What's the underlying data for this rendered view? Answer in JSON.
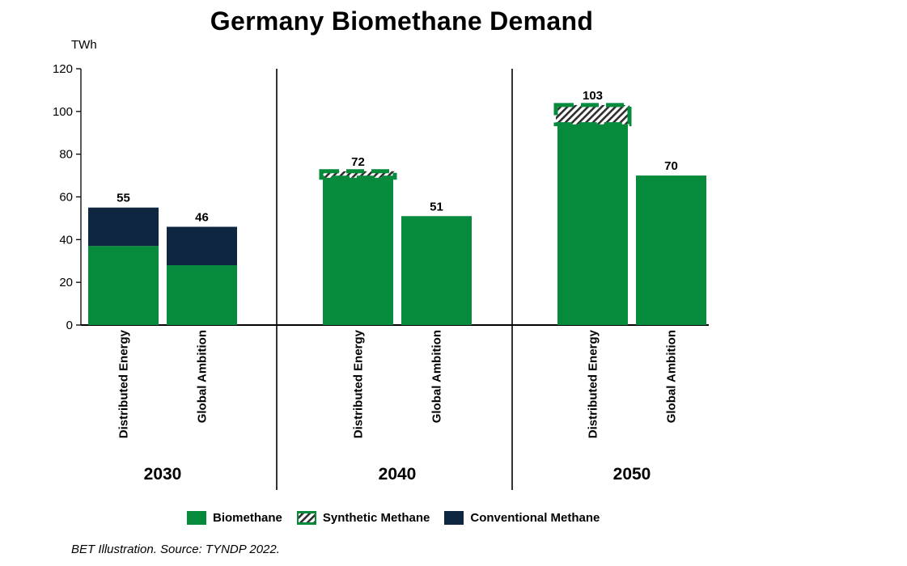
{
  "title": "Germany Biomethane Demand",
  "colors": {
    "biomethane": "#068a3c",
    "synthetic_hatch": "#2e2e2e",
    "conventional": "#0e2640",
    "axis": "#000000"
  },
  "legend": [
    {
      "key": "biomethane",
      "label": "Biomethane",
      "style": "solid"
    },
    {
      "key": "synthetic",
      "label": "Synthetic Methane",
      "style": "hatched"
    },
    {
      "key": "conventional",
      "label": "Conventional Methane",
      "style": "solid"
    }
  ],
  "source": "BET Illustration. Source: TYNDP 2022.",
  "chart_data": {
    "type": "bar",
    "stacked": true,
    "title": "Germany Biomethane Demand",
    "ylabel": "TWh",
    "ylim": [
      0,
      120
    ],
    "yticks": [
      0,
      20,
      40,
      60,
      80,
      100,
      120
    ],
    "grid": false,
    "legend_position": "bottom",
    "groups": [
      {
        "year": "2030",
        "bars": [
          {
            "scenario": "Distributed Energy",
            "total_label": "55",
            "biomethane": 37,
            "synthetic": 0,
            "conventional": 18
          },
          {
            "scenario": "Global Ambition",
            "total_label": "46",
            "biomethane": 28,
            "synthetic": 0,
            "conventional": 18
          }
        ]
      },
      {
        "year": "2040",
        "bars": [
          {
            "scenario": "Distributed Energy",
            "total_label": "72",
            "biomethane": 69,
            "synthetic": 3,
            "conventional": 0
          },
          {
            "scenario": "Global Ambition",
            "total_label": "51",
            "biomethane": 51,
            "synthetic": 0,
            "conventional": 0
          }
        ]
      },
      {
        "year": "2050",
        "bars": [
          {
            "scenario": "Distributed Energy",
            "total_label": "103",
            "biomethane": 94,
            "synthetic": 9,
            "conventional": 0
          },
          {
            "scenario": "Global Ambition",
            "total_label": "70",
            "biomethane": 70,
            "synthetic": 0,
            "conventional": 0
          }
        ]
      }
    ]
  }
}
